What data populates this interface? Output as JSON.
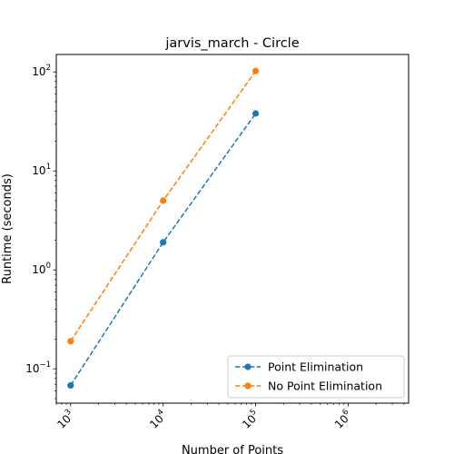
{
  "chart_data": {
    "type": "line",
    "title": "jarvis_march - Circle",
    "xlabel": "Number of Points",
    "ylabel": "Runtime (seconds)",
    "xscale": "log",
    "yscale": "log",
    "xlim": [
      700,
      4500000
    ],
    "ylim": [
      0.045,
      150
    ],
    "x_ticks": [
      {
        "value": 1000,
        "base": "10",
        "exp": "3"
      },
      {
        "value": 10000,
        "base": "10",
        "exp": "4"
      },
      {
        "value": 100000,
        "base": "10",
        "exp": "5"
      },
      {
        "value": 1000000,
        "base": "10",
        "exp": "6"
      }
    ],
    "y_ticks": [
      {
        "value": 0.1,
        "base": "10",
        "exp": "−1"
      },
      {
        "value": 1,
        "base": "10",
        "exp": "0"
      },
      {
        "value": 10,
        "base": "10",
        "exp": "1"
      },
      {
        "value": 100,
        "base": "10",
        "exp": "2"
      }
    ],
    "grid": false,
    "legend_position": "lower-right",
    "series": [
      {
        "name": "Point Elimination",
        "color": "#1f77b4",
        "line_style": "dashed",
        "marker": "circle",
        "x": [
          1000,
          10000,
          100000
        ],
        "y": [
          0.068,
          1.9,
          38
        ]
      },
      {
        "name": "No Point Elimination",
        "color": "#ff7f0e",
        "line_style": "dashed",
        "marker": "circle",
        "x": [
          1000,
          10000,
          100000
        ],
        "y": [
          0.19,
          5.0,
          102
        ]
      }
    ]
  }
}
